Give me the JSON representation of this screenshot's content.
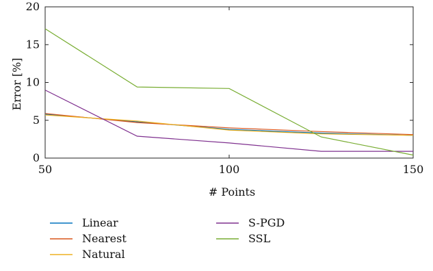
{
  "chart_data": {
    "type": "line",
    "xlabel": "# Points",
    "ylabel": "Error [%]",
    "xlim": [
      50,
      150
    ],
    "ylim": [
      0,
      20
    ],
    "xticks": [
      "50",
      "100",
      "150"
    ],
    "yticks": [
      "0",
      "5",
      "10",
      "15",
      "20"
    ],
    "grid": false,
    "legend_position": "bottom",
    "x": [
      50,
      75,
      100,
      125,
      150
    ],
    "series": [
      {
        "name": "Linear",
        "color": "#0072BD",
        "values": [
          5.8,
          4.8,
          3.8,
          3.3,
          3.0
        ]
      },
      {
        "name": "Nearest",
        "color": "#D95319",
        "values": [
          5.9,
          4.7,
          4.0,
          3.5,
          3.1
        ]
      },
      {
        "name": "Natural",
        "color": "#EDB120",
        "values": [
          5.7,
          4.9,
          3.7,
          3.2,
          3.0
        ]
      },
      {
        "name": "S-PGD",
        "color": "#7E2F8E",
        "values": [
          9.0,
          2.9,
          2.0,
          0.9,
          0.9
        ]
      },
      {
        "name": "SSL",
        "color": "#77AC30",
        "values": [
          17.1,
          9.4,
          9.2,
          2.8,
          0.4
        ]
      }
    ]
  }
}
